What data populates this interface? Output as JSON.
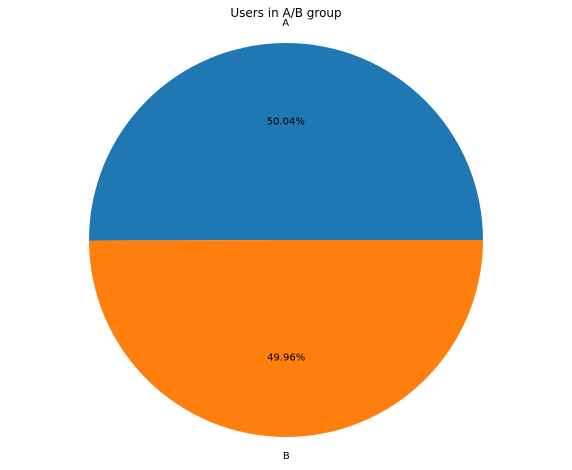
{
  "chart_data": {
    "type": "pie",
    "title": "Users in A/B group",
    "categories": [
      "A",
      "B"
    ],
    "values": [
      50.04,
      49.96
    ],
    "value_labels": [
      "50.04%",
      "49.96%"
    ],
    "colors": [
      "#1f77b4",
      "#ff7f0e"
    ],
    "start_angle_deg": 0,
    "direction": "counterclockwise",
    "legend": "none"
  }
}
